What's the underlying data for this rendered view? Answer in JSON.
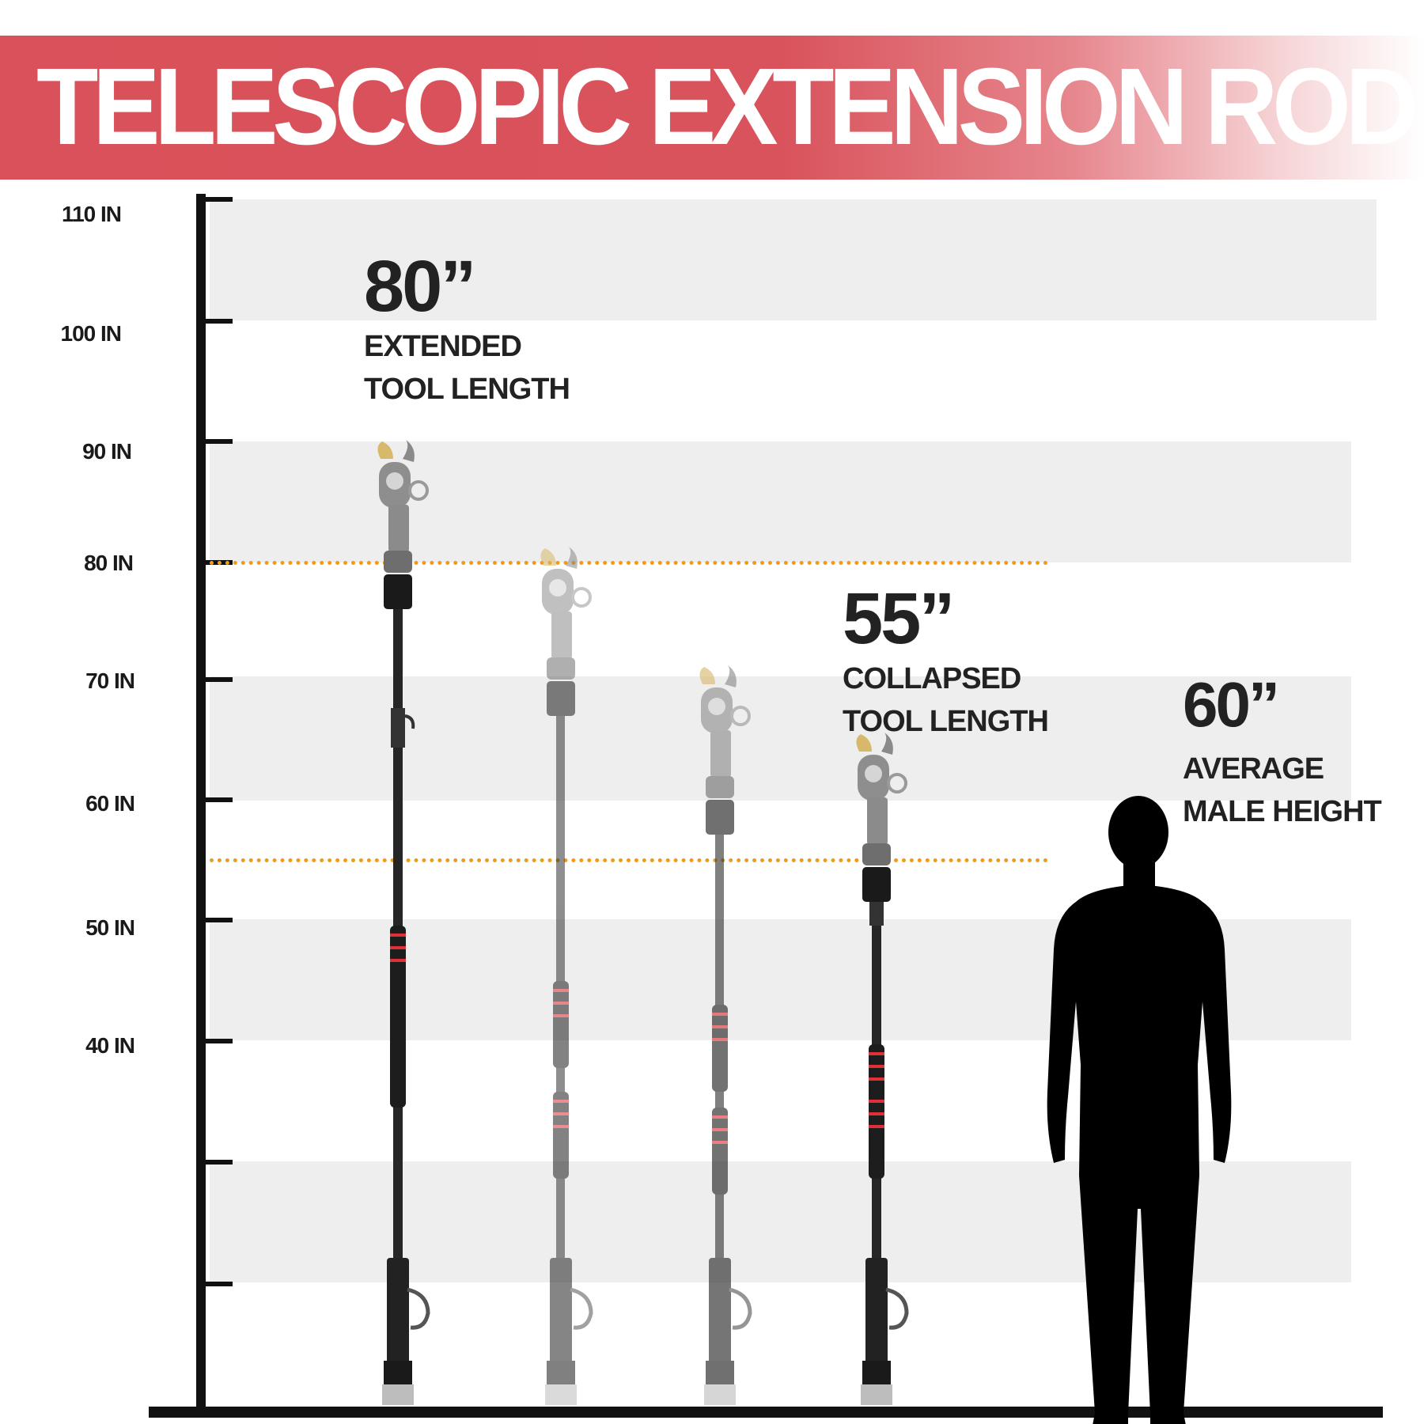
{
  "header": {
    "title": "TELESCOPIC EXTENSION ROD"
  },
  "axis": {
    "tick_labels": [
      "110 IN",
      "100 IN",
      "90 IN",
      "80 IN",
      "70 IN",
      "60 IN",
      "50 IN",
      "40 IN"
    ]
  },
  "callouts": {
    "extended": {
      "value": "80”",
      "line1": "EXTENDED",
      "line2": "TOOL LENGTH"
    },
    "collapsed": {
      "value": "55”",
      "line1": "COLLAPSED",
      "line2": "TOOL LENGTH"
    },
    "male": {
      "value": "60”",
      "line1": "AVERAGE",
      "line2": "MALE HEIGHT"
    }
  },
  "colors": {
    "banner": "#d9515a",
    "reference_line": "#f29a1a",
    "grip_stripe": "#e0303a",
    "blade": "#d8b86a"
  }
}
